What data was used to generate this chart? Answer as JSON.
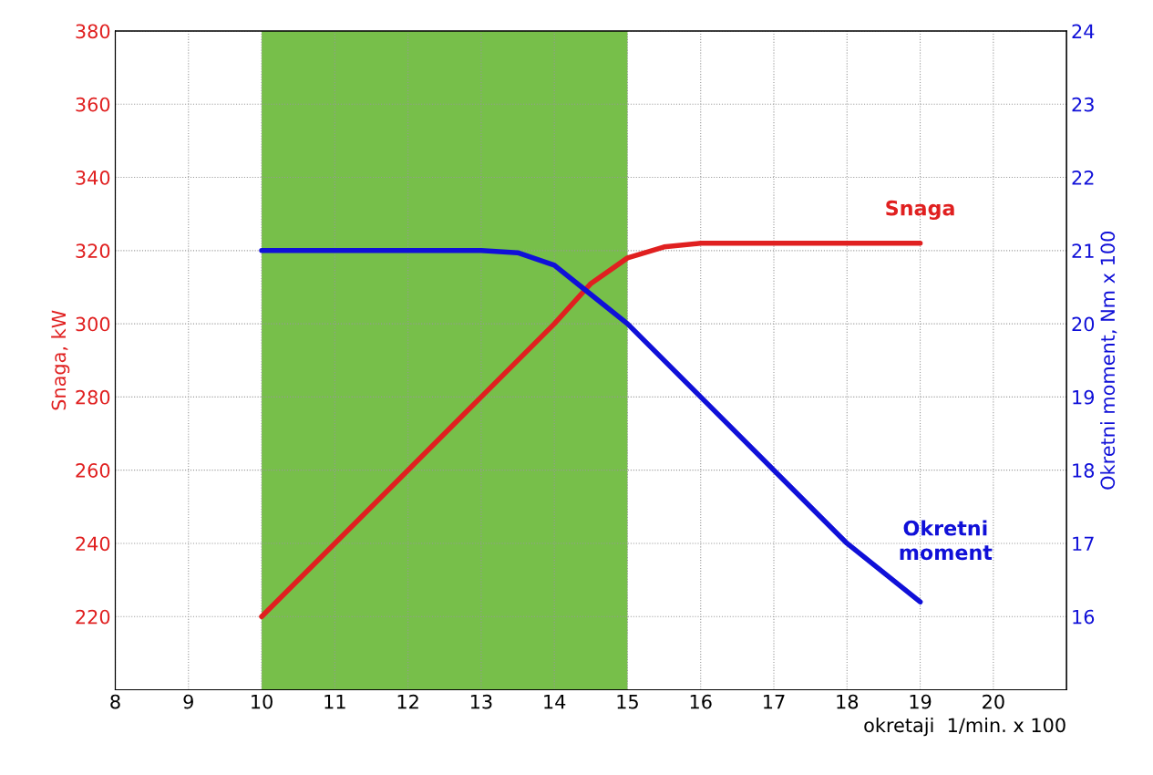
{
  "chart_data": {
    "type": "line",
    "xlabel": "okretaji  1/min. x 100",
    "ylabel": "Snaga, kW",
    "y2label": "Okretni moment, Nm x 100",
    "xlim": [
      8,
      21
    ],
    "xticks": [
      8,
      9,
      10,
      11,
      12,
      13,
      14,
      15,
      16,
      17,
      18,
      19,
      20
    ],
    "ylim": [
      200,
      380
    ],
    "yticks": [
      220,
      240,
      260,
      280,
      300,
      320,
      340,
      360,
      380
    ],
    "y2lim": [
      15,
      24
    ],
    "y2ticks": [
      16,
      17,
      18,
      19,
      20,
      21,
      22,
      23,
      24
    ],
    "grid": true,
    "line_style": "solid",
    "marker": "none",
    "bands": [
      {
        "axis": "x",
        "from": 10,
        "to": 15,
        "color": "#77bf4a"
      }
    ],
    "series": [
      {
        "name": "Snaga",
        "color": "#e02020",
        "x": [
          10,
          11,
          12,
          13,
          14,
          14.5,
          15,
          15.5,
          16,
          19
        ],
        "values": [
          220,
          240,
          260,
          280,
          300,
          311,
          318,
          321,
          322,
          322
        ]
      },
      {
        "name": "Okretni moment",
        "color": "#1010d8",
        "axis": "y2",
        "x": [
          10,
          13,
          13.5,
          14,
          14.5,
          15,
          16,
          17,
          18,
          19
        ],
        "values": [
          21,
          21,
          20.97,
          20.8,
          20.4,
          20.0,
          19.0,
          18.0,
          17.0,
          16.2
        ]
      }
    ]
  }
}
